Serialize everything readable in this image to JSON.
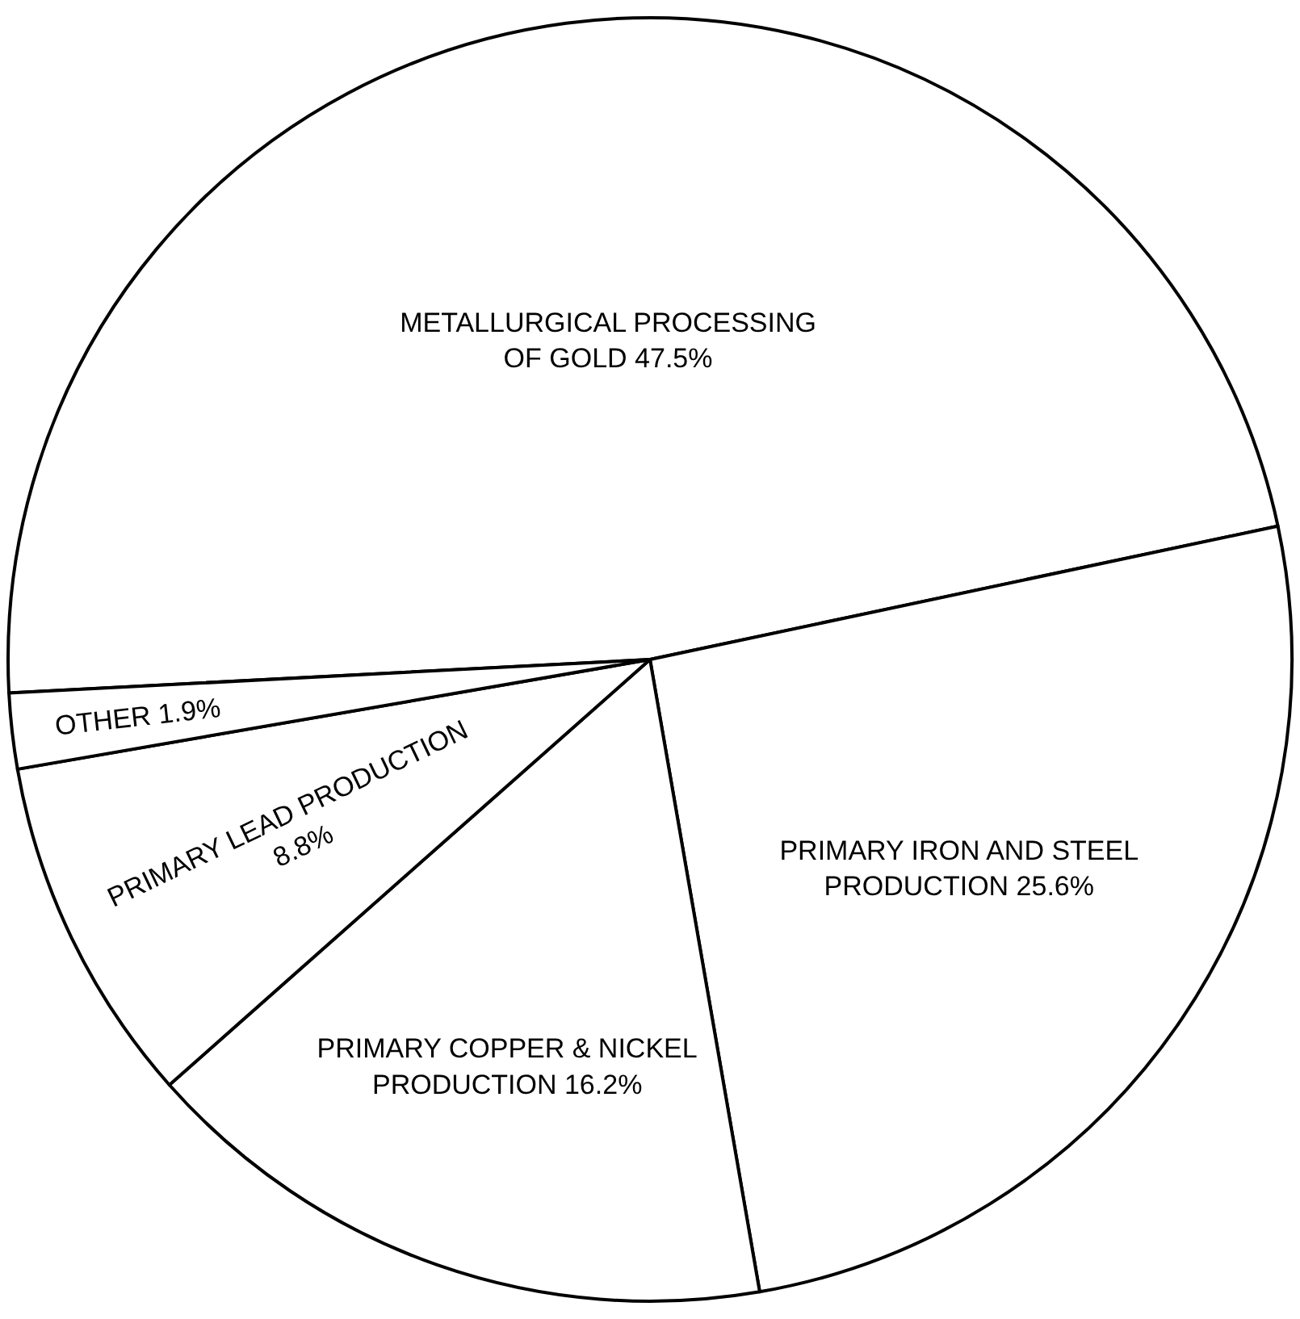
{
  "chart_data": {
    "type": "pie",
    "categories": [
      "METALLURGICAL PROCESSING OF GOLD",
      "PRIMARY IRON AND STEEL PRODUCTION",
      "PRIMARY COPPER & NICKEL PRODUCTION",
      "PRIMARY LEAD PRODUCTION",
      "OTHER"
    ],
    "values": [
      47.5,
      25.6,
      16.2,
      8.8,
      1.9
    ],
    "value_labels": [
      "47.5%",
      "25.6%",
      "16.2%",
      "8.8%",
      "1.9%"
    ],
    "colors": [
      "#ffffff",
      "#ffffff",
      "#ffffff",
      "#ffffff",
      "#ffffff"
    ]
  }
}
